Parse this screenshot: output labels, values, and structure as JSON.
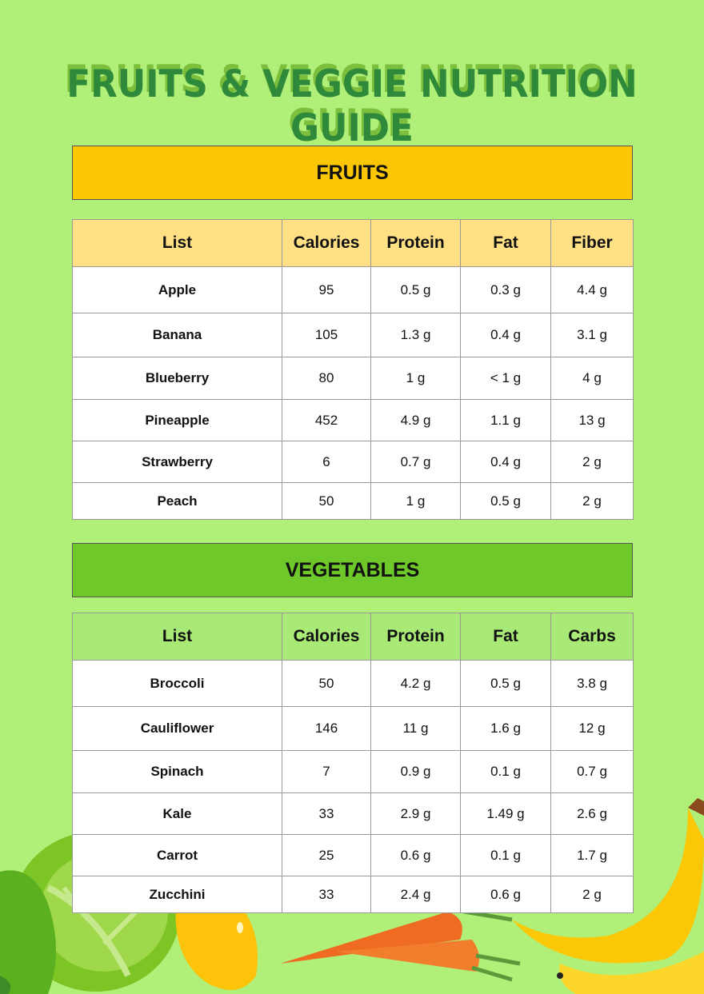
{
  "title": "FRUITS & VEGGIE NUTRITION GUIDE",
  "fruits": {
    "heading": "FRUITS",
    "columns": [
      "List",
      "Calories",
      "Protein",
      "Fat",
      "Fiber"
    ],
    "rows": [
      [
        "Apple",
        "95",
        "0.5 g",
        "0.3 g",
        "4.4 g"
      ],
      [
        "Banana",
        "105",
        "1.3 g",
        "0.4 g",
        "3.1 g"
      ],
      [
        "Blueberry",
        "80",
        "1 g",
        "< 1 g",
        "4 g"
      ],
      [
        "Pineapple",
        "452",
        "4.9 g",
        "1.1 g",
        "13 g"
      ],
      [
        "Strawberry",
        "6",
        "0.7 g",
        "0.4 g",
        "2 g"
      ],
      [
        "Peach",
        "50",
        "1 g",
        "0.5 g",
        "2 g"
      ]
    ]
  },
  "vegetables": {
    "heading": "VEGETABLES",
    "columns": [
      "List",
      "Calories",
      "Protein",
      "Fat",
      "Carbs"
    ],
    "rows": [
      [
        "Broccoli",
        "50",
        "4.2 g",
        "0.5 g",
        "3.8 g"
      ],
      [
        "Cauliflower",
        "146",
        "11 g",
        "1.6 g",
        "12 g"
      ],
      [
        "Spinach",
        "7",
        "0.9 g",
        "0.1 g",
        "0.7 g"
      ],
      [
        "Kale",
        "33",
        "2.9 g",
        "1.49 g",
        "2.6 g"
      ],
      [
        "Carrot",
        "25",
        "0.6 g",
        "0.1 g",
        "1.7 g"
      ],
      [
        "Zucchini",
        "33",
        "2.4 g",
        "0.6 g",
        "2 g"
      ]
    ]
  },
  "colors": {
    "background": "#b0ef78",
    "fruits_band": "#fbc604",
    "vegetables_band": "#6ec829",
    "title": "#2e8a3a"
  },
  "illustrations": [
    "lettuce",
    "mango",
    "carrot",
    "banana"
  ]
}
